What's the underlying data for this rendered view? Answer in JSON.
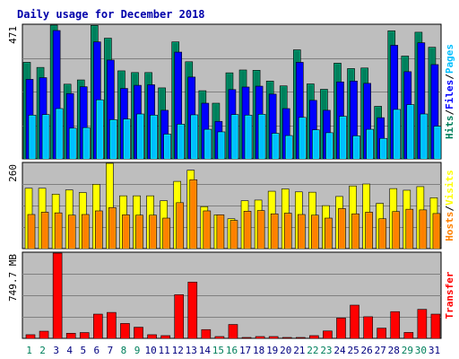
{
  "chart_data": {
    "type": "bar",
    "title": "Daily usage for December 2018",
    "categories": [
      "1",
      "2",
      "3",
      "4",
      "5",
      "6",
      "7",
      "8",
      "9",
      "10",
      "11",
      "12",
      "13",
      "14",
      "15",
      "16",
      "17",
      "18",
      "19",
      "20",
      "21",
      "22",
      "23",
      "24",
      "25",
      "26",
      "27",
      "28",
      "29",
      "30",
      "31"
    ],
    "weekend_days": [
      "1",
      "2",
      "8",
      "9",
      "15",
      "16",
      "22",
      "23",
      "29",
      "30"
    ],
    "panels": [
      {
        "name": "hits-files-pages",
        "side_labels": [
          "Hits",
          "Files",
          "Pages"
        ],
        "side_label_colors": [
          "#00805c",
          "#0000ff",
          "#00bfff"
        ],
        "max_label": "471",
        "ylim": [
          0,
          471
        ],
        "series": [
          {
            "name": "Hits",
            "color": "#00805c",
            "values": [
              340,
              322,
              471,
              263,
              278,
              470,
              425,
              310,
              304,
              304,
              250,
              412,
              342,
              240,
              196,
              303,
              313,
              312,
              274,
              257,
              384,
              264,
              245,
              337,
              318,
              320,
              185,
              451,
              362,
              446,
              393
            ]
          },
          {
            "name": "Files",
            "color": "#0000ff",
            "values": [
              280,
              286,
              452,
              230,
              254,
              412,
              348,
              248,
              259,
              261,
              171,
              376,
              288,
              196,
              132,
              244,
              253,
              256,
              228,
              177,
              340,
              206,
              171,
              271,
              274,
              266,
              145,
              400,
              307,
              409,
              332
            ]
          },
          {
            "name": "Pages",
            "color": "#00bfff",
            "values": [
              154,
              156,
              177,
              108,
              110,
              208,
              138,
              140,
              158,
              154,
              87,
              122,
              155,
              104,
              95,
              156,
              154,
              157,
              90,
              82,
              146,
              102,
              92,
              150,
              81,
              104,
              72,
              174,
              191,
              158,
              115
            ]
          }
        ]
      },
      {
        "name": "hosts-visits",
        "side_labels": [
          "Hosts",
          "Visits"
        ],
        "side_label_colors": [
          "#ff8000",
          "#ffff00"
        ],
        "max_label": "260",
        "ylim": [
          0,
          260
        ],
        "series": [
          {
            "name": "Visits",
            "color": "#ffff00",
            "values": [
              184,
              184,
              166,
              179,
              171,
              196,
              260,
              161,
              161,
              161,
              146,
              205,
              239,
              128,
              103,
              91,
              146,
              148,
              175,
              182,
              173,
              172,
              131,
              159,
              191,
              197,
              138,
              183,
              178,
              189,
              155
            ]
          },
          {
            "name": "Hosts",
            "color": "#ff8000",
            "values": [
              104,
              111,
              109,
              102,
              104,
              115,
              125,
              103,
              102,
              102,
              93,
              140,
              210,
              115,
              103,
              86,
              114,
              116,
              106,
              108,
              104,
              102,
              93,
              122,
              106,
              111,
              91,
              113,
              120,
              118,
              107
            ]
          }
        ]
      },
      {
        "name": "transfer",
        "side_labels": [
          "Transfer"
        ],
        "side_label_colors": [
          "#ff0000"
        ],
        "max_label": "749.7 MB",
        "ylim": [
          0,
          749.7
        ],
        "series": [
          {
            "name": "Transfer",
            "unit": "MB",
            "color": "#ff0000",
            "values": [
              32,
              63,
              749.7,
              45,
              51,
              213,
              228,
              131,
              98,
              32,
              24,
              384,
              495,
              77,
              16,
              122,
              8,
              16,
              16,
              8,
              8,
              24,
              65,
              179,
              292,
              190,
              90,
              235,
              52,
              255,
              213
            ]
          }
        ]
      }
    ],
    "grid": true,
    "legend": "right-side vertical text"
  }
}
